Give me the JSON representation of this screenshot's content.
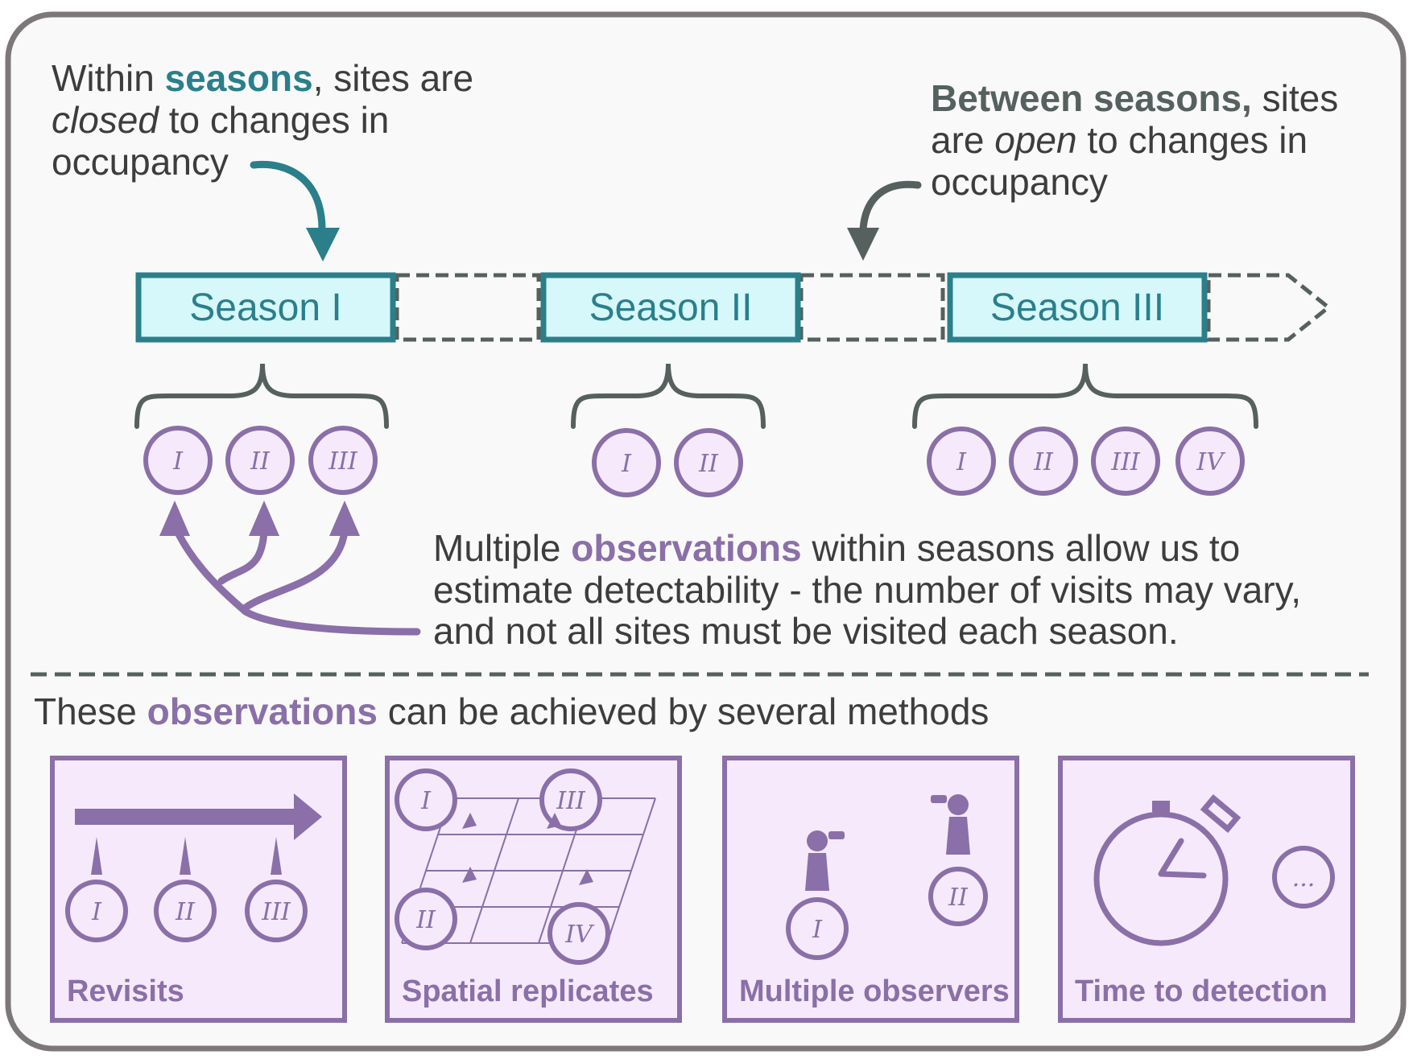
{
  "top_left_note": {
    "prefix": "Within ",
    "highlight": "seasons",
    "suffix": ", sites are",
    "line2_italic": "closed",
    "line2_rest": " to changes in",
    "line3": "occupancy"
  },
  "top_right_note": {
    "highlight": "Between seasons,",
    "suffix": " sites",
    "line2_prefix": "are ",
    "line2_italic": "open",
    "line2_rest": " to changes in",
    "line3": "occupancy"
  },
  "seasons": [
    {
      "label": "Season I",
      "visits": [
        "I",
        "II",
        "III"
      ]
    },
    {
      "label": "Season II",
      "visits": [
        "I",
        "II"
      ]
    },
    {
      "label": "Season III",
      "visits": [
        "I",
        "II",
        "III",
        "IV"
      ]
    }
  ],
  "observations_note": {
    "prefix": "Multiple ",
    "highlight": "observations",
    "line1_rest": " within seasons allow us to",
    "line2": "estimate detectability - the number of visits may vary,",
    "line3": "and not all sites must be visited each season."
  },
  "methods_heading": {
    "prefix": "These ",
    "highlight": "observations",
    "suffix": " can be achieved by several methods"
  },
  "methods": [
    {
      "label": "Revisits",
      "visits": [
        "I",
        "II",
        "III"
      ]
    },
    {
      "label": "Spatial replicates",
      "visits": [
        "I",
        "III",
        "II",
        "IV"
      ]
    },
    {
      "label": "Multiple observers",
      "visits": [
        "I",
        "II"
      ]
    },
    {
      "label": "Time to detection",
      "visits": [
        "..."
      ]
    }
  ],
  "colors": {
    "teal": "#2a7f8a",
    "teal_fill": "#d6f8fb",
    "slate": "#56605f",
    "purple": "#8a6fa8",
    "purple_fill": "#f5e9fb",
    "frame": "#7c7878",
    "background": "#f9f9f9"
  }
}
